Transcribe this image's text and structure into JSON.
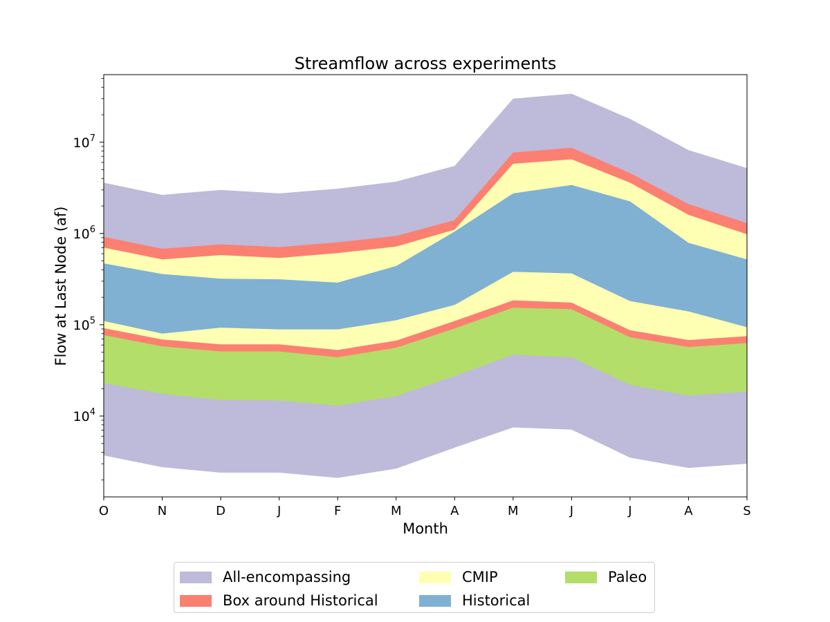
{
  "chart_data": {
    "type": "area",
    "title": "Streamflow across experiments",
    "xlabel": "Month",
    "ylabel": "Flow at Last Node (af)",
    "yscale": "log",
    "ylim": [
      1300,
      55000000
    ],
    "yticks": [
      {
        "value": 10000,
        "base": "10",
        "exp": "4"
      },
      {
        "value": 100000,
        "base": "10",
        "exp": "5"
      },
      {
        "value": 1000000,
        "base": "10",
        "exp": "6"
      },
      {
        "value": 10000000,
        "base": "10",
        "exp": "7"
      }
    ],
    "categories": [
      "O",
      "N",
      "D",
      "J",
      "F",
      "M",
      "A",
      "M",
      "J",
      "J",
      "A",
      "S"
    ],
    "grid": false,
    "legend_position": "below",
    "series": [
      {
        "name": "All-encompassing",
        "color": "#bebada",
        "lower": [
          3700,
          2750,
          2400,
          2400,
          2100,
          2650,
          4500,
          7500,
          7100,
          3500,
          2700,
          3000
        ],
        "upper": [
          3600000,
          2650000,
          3000000,
          2750000,
          3100000,
          3700000,
          5500000,
          30000000,
          34000000,
          18000000,
          8200000,
          5200000
        ]
      },
      {
        "name": "Box around Historical",
        "color": "#fb8072",
        "lower": [
          75000,
          57000,
          50000,
          50000,
          43000,
          55000,
          90000,
          150000,
          145000,
          72000,
          56000,
          62000
        ],
        "upper": [
          920000,
          680000,
          760000,
          710000,
          800000,
          940000,
          1400000,
          7700000,
          8700000,
          4600000,
          2100000,
          1300000
        ]
      },
      {
        "name": "CMIP",
        "color": "#ffffb3",
        "lower": [
          92000,
          69000,
          61000,
          61000,
          53000,
          67000,
          110000,
          185000,
          175000,
          87000,
          68000,
          75000
        ],
        "upper": [
          700000,
          520000,
          580000,
          540000,
          610000,
          720000,
          1100000,
          5800000,
          6500000,
          3600000,
          1600000,
          980000
        ]
      },
      {
        "name": "Historical",
        "color": "#80b1d3",
        "lower": [
          110000,
          80000,
          93000,
          89000,
          89000,
          112000,
          165000,
          380000,
          365000,
          182000,
          140000,
          94000
        ],
        "upper": [
          470000,
          360000,
          320000,
          315000,
          290000,
          440000,
          1050000,
          2750000,
          3400000,
          2250000,
          790000,
          520000
        ]
      },
      {
        "name": "Paleo",
        "color": "#b3de69",
        "lower": [
          23000,
          17500,
          15000,
          14800,
          13000,
          16500,
          27500,
          47000,
          44000,
          22000,
          16800,
          18500
        ],
        "upper": [
          77000,
          58000,
          51000,
          51000,
          44000,
          56000,
          91000,
          154000,
          148000,
          73000,
          57000,
          63000
        ]
      }
    ]
  },
  "legend": {
    "items": [
      {
        "label": "All-encompassing",
        "color": "#bebada"
      },
      {
        "label": "Box around Historical",
        "color": "#fb8072"
      },
      {
        "label": "CMIP",
        "color": "#ffffb3"
      },
      {
        "label": "Historical",
        "color": "#80b1d3"
      },
      {
        "label": "Paleo",
        "color": "#b3de69"
      }
    ]
  }
}
